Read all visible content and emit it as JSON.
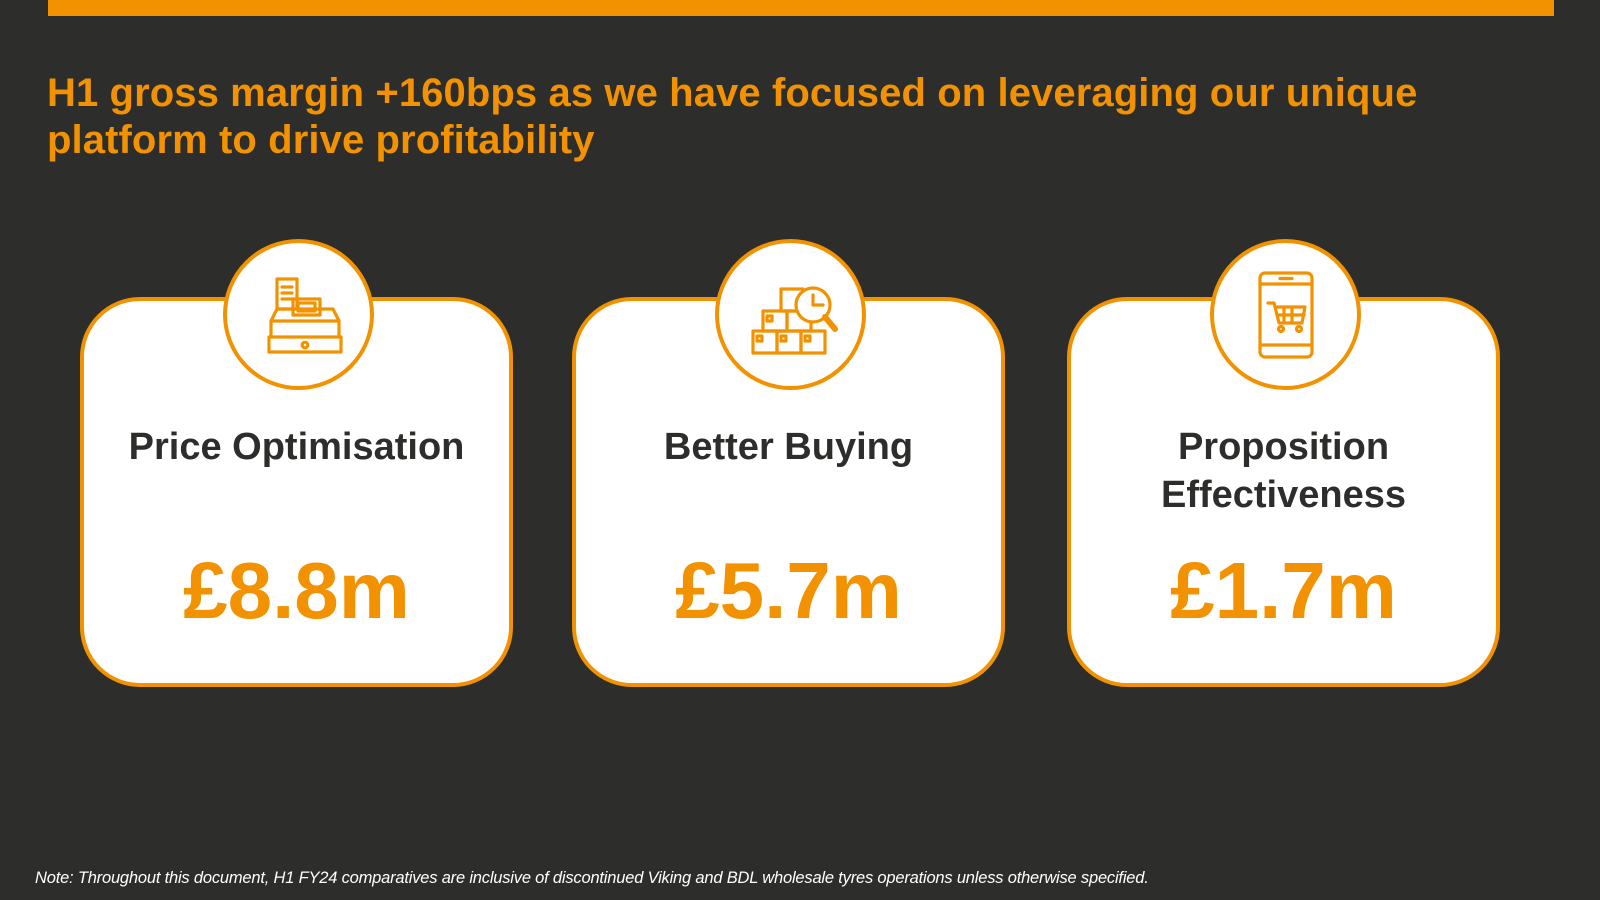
{
  "slide": {
    "headline": "H1 gross margin +160bps as we have focused on leveraging our unique platform to drive profitability",
    "note": "Note: Throughout this document, H1 FY24 comparatives are inclusive of discontinued Viking and BDL wholesale tyres operations unless otherwise specified."
  },
  "cards": [
    {
      "label": "Price Optimisation",
      "value": "£8.8m",
      "icon": "cash-register-icon"
    },
    {
      "label": "Better Buying",
      "value": "£5.7m",
      "icon": "boxes-magnifier-icon"
    },
    {
      "label": "Proposition\nEffectiveness",
      "value": "£1.7m",
      "icon": "mobile-shopping-cart-icon"
    }
  ],
  "colors": {
    "background": "#2d2d2b",
    "accent": "#f39200",
    "card": "#ffffff",
    "text_dark": "#2d2d2b"
  }
}
